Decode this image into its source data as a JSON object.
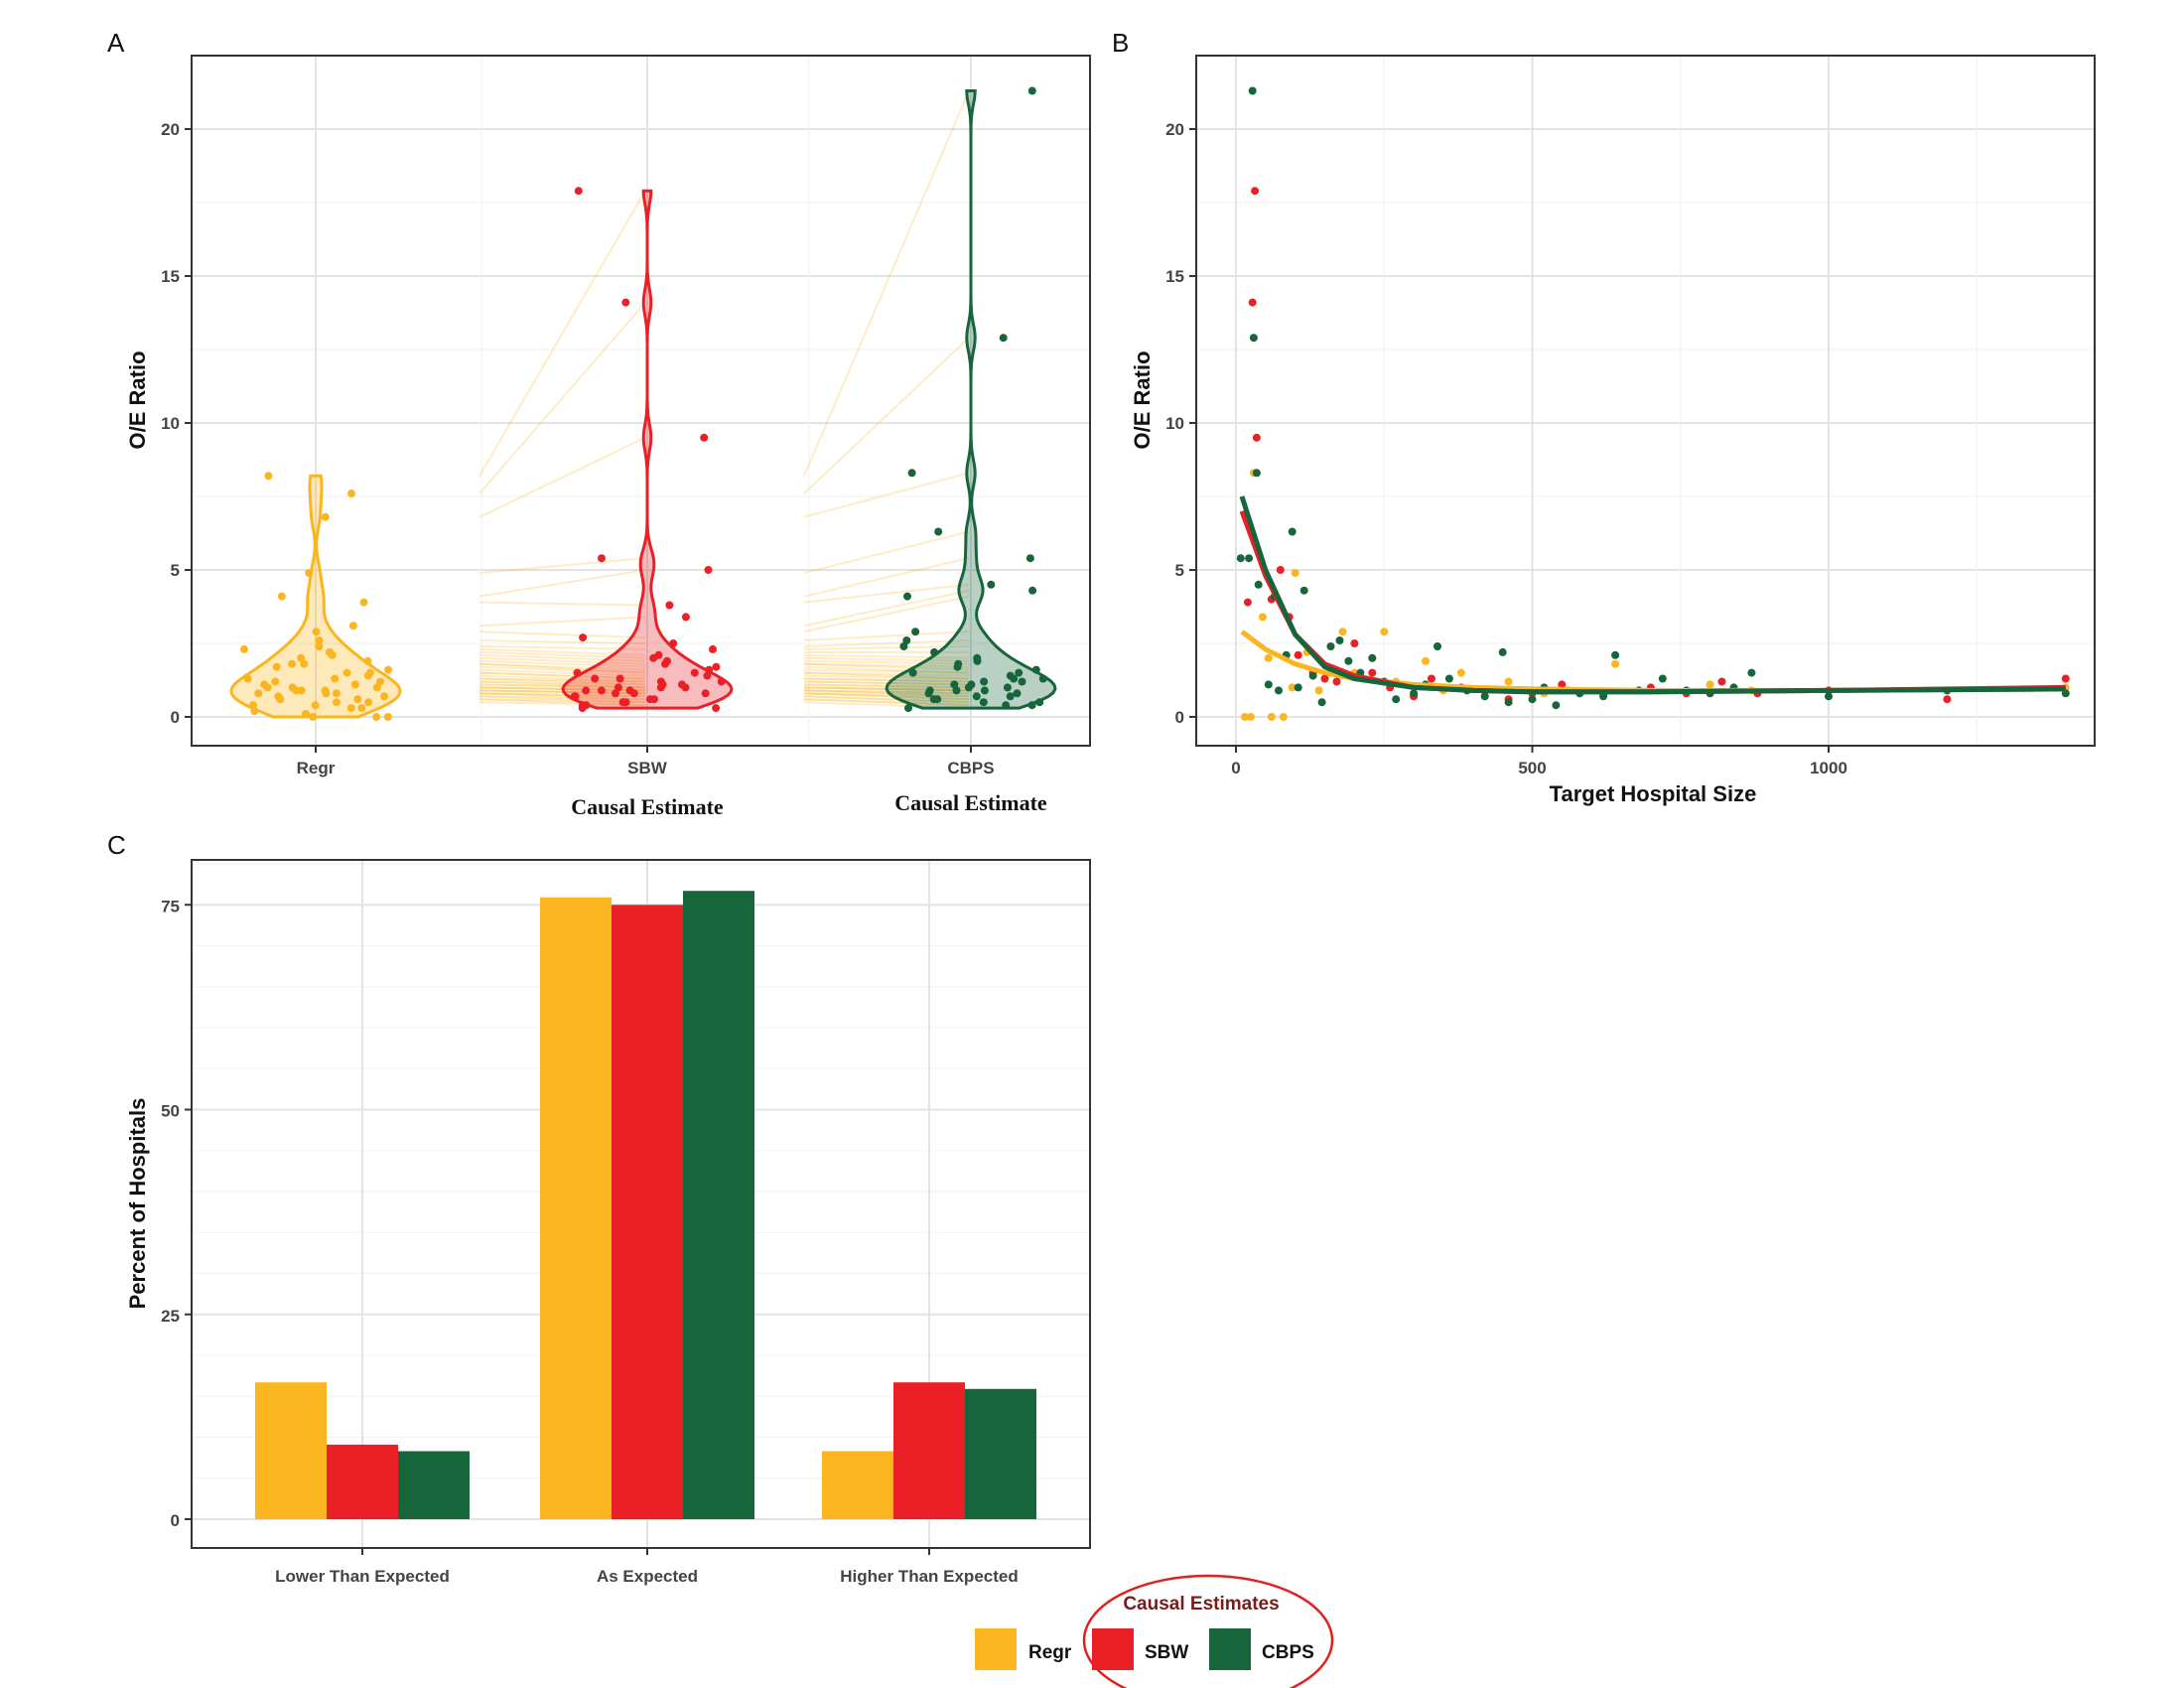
{
  "colors": {
    "Regr": "#FBB51E",
    "SBW": "#EB2027",
    "CBPS": "#17653A"
  },
  "chart_data": [
    {
      "panel": "A",
      "type": "violin",
      "categories": [
        "Regr",
        "SBW",
        "CBPS"
      ],
      "ylabel": "O/E Ratio",
      "xlabels": [
        "Causal Estimate",
        "Causal Estimate"
      ],
      "ylim": [
        0,
        21.5
      ],
      "yticks": [
        0,
        5,
        10,
        15,
        20
      ],
      "grid": true,
      "series": [
        {
          "name": "Regr",
          "values": [
            8.2,
            7.6,
            6.8,
            4.9,
            4.1,
            3.9,
            3.1,
            2.9,
            2.6,
            2.4,
            2.3,
            2.2,
            2.1,
            2.0,
            1.9,
            1.8,
            1.8,
            1.7,
            1.6,
            1.5,
            1.5,
            1.4,
            1.3,
            1.3,
            1.2,
            1.2,
            1.1,
            1.1,
            1.0,
            1.0,
            1.0,
            0.9,
            0.9,
            0.9,
            0.8,
            0.8,
            0.8,
            0.7,
            0.7,
            0.6,
            0.6,
            0.5,
            0.5,
            0.4,
            0.4,
            0.3,
            0.3,
            0.2,
            0.1,
            0.0,
            0.0,
            0.0
          ]
        },
        {
          "name": "SBW",
          "values": [
            17.9,
            14.1,
            9.5,
            5.4,
            5.0,
            3.8,
            3.4,
            2.7,
            2.5,
            2.3,
            2.1,
            2.0,
            1.9,
            1.8,
            1.7,
            1.6,
            1.5,
            1.5,
            1.4,
            1.3,
            1.3,
            1.2,
            1.2,
            1.1,
            1.1,
            1.0,
            1.0,
            1.0,
            0.9,
            0.9,
            0.9,
            0.8,
            0.8,
            0.8,
            0.7,
            0.7,
            0.6,
            0.6,
            0.5,
            0.5,
            0.4,
            0.4,
            0.3,
            0.3
          ]
        },
        {
          "name": "CBPS",
          "values": [
            21.3,
            12.9,
            8.3,
            6.3,
            5.4,
            4.5,
            4.3,
            4.1,
            2.9,
            2.6,
            2.4,
            2.2,
            2.0,
            1.9,
            1.8,
            1.7,
            1.6,
            1.5,
            1.5,
            1.4,
            1.3,
            1.3,
            1.2,
            1.2,
            1.1,
            1.1,
            1.0,
            1.0,
            0.9,
            0.9,
            0.9,
            0.8,
            0.8,
            0.7,
            0.7,
            0.6,
            0.6,
            0.5,
            0.5,
            0.4,
            0.4,
            0.3
          ]
        }
      ]
    },
    {
      "panel": "B",
      "type": "scatter",
      "xlabel": "Target Hospital Size",
      "ylabel": "O/E Ratio",
      "xlim": [
        -50,
        1460
      ],
      "ylim": [
        0,
        21.5
      ],
      "xticks": [
        0,
        500,
        1000
      ],
      "yticks": [
        0,
        5,
        10,
        15,
        20
      ],
      "grid": true,
      "series": [
        {
          "name": "Regr",
          "x": [
            15,
            25,
            30,
            45,
            55,
            60,
            80,
            95,
            100,
            120,
            140,
            160,
            180,
            200,
            230,
            250,
            270,
            300,
            320,
            350,
            380,
            420,
            460,
            520,
            560,
            640,
            700,
            800,
            870,
            1400
          ],
          "y": [
            0.0,
            0.0,
            8.3,
            3.4,
            2.0,
            0.0,
            0.0,
            1.0,
            4.9,
            2.2,
            0.9,
            1.5,
            2.9,
            1.5,
            2.0,
            2.9,
            1.2,
            0.7,
            1.9,
            0.9,
            1.5,
            0.7,
            1.2,
            0.8,
            0.9,
            1.8,
            0.9,
            1.1,
            0.9,
            1.0
          ]
        },
        {
          "name": "SBW",
          "x": [
            20,
            28,
            32,
            35,
            60,
            75,
            90,
            105,
            130,
            150,
            170,
            200,
            230,
            260,
            300,
            330,
            380,
            420,
            460,
            500,
            550,
            620,
            700,
            760,
            820,
            880,
            1000,
            1200,
            1400
          ],
          "y": [
            3.9,
            14.1,
            17.9,
            9.5,
            4.0,
            5.0,
            3.4,
            2.1,
            1.5,
            1.3,
            1.2,
            2.5,
            1.5,
            1.0,
            0.7,
            1.3,
            1.0,
            0.9,
            0.6,
            0.8,
            1.1,
            0.8,
            1.0,
            0.8,
            1.2,
            0.8,
            0.9,
            0.6,
            1.3
          ]
        },
        {
          "name": "CBPS",
          "x": [
            8,
            22,
            28,
            30,
            35,
            38,
            55,
            65,
            72,
            85,
            95,
            105,
            115,
            130,
            145,
            160,
            175,
            190,
            210,
            230,
            250,
            270,
            300,
            320,
            340,
            360,
            390,
            420,
            450,
            460,
            500,
            520,
            540,
            580,
            620,
            640,
            680,
            720,
            760,
            800,
            840,
            870,
            1000,
            1200,
            1400
          ],
          "y": [
            5.4,
            5.4,
            21.3,
            12.9,
            8.3,
            4.5,
            1.1,
            4.1,
            0.9,
            2.1,
            6.3,
            1.0,
            4.3,
            1.4,
            0.5,
            2.4,
            2.6,
            1.9,
            1.5,
            2.0,
            1.2,
            0.6,
            0.8,
            1.1,
            2.4,
            1.3,
            0.9,
            0.7,
            2.2,
            0.5,
            0.6,
            1.0,
            0.4,
            0.8,
            0.7,
            2.1,
            0.9,
            1.3,
            0.9,
            0.8,
            1.0,
            1.5,
            0.7,
            0.9,
            0.8
          ]
        }
      ],
      "trend_lines": [
        {
          "name": "Regr",
          "x": [
            10,
            50,
            100,
            150,
            200,
            300,
            400,
            500,
            700,
            1000,
            1400
          ],
          "y": [
            2.9,
            2.3,
            1.8,
            1.5,
            1.3,
            1.1,
            1.0,
            0.95,
            0.9,
            0.9,
            0.95
          ]
        },
        {
          "name": "SBW",
          "x": [
            10,
            50,
            100,
            150,
            200,
            300,
            400,
            500,
            700,
            1000,
            1400
          ],
          "y": [
            7.0,
            4.8,
            2.8,
            1.8,
            1.4,
            1.0,
            0.9,
            0.85,
            0.85,
            0.9,
            1.0
          ]
        },
        {
          "name": "CBPS",
          "x": [
            10,
            50,
            100,
            150,
            200,
            300,
            400,
            500,
            700,
            1000,
            1400
          ],
          "y": [
            7.5,
            5.0,
            2.8,
            1.7,
            1.3,
            1.0,
            0.9,
            0.85,
            0.85,
            0.9,
            0.95
          ]
        }
      ]
    },
    {
      "panel": "C",
      "type": "bar",
      "categories": [
        "Lower Than Expected",
        "As Expected",
        "Higher Than Expected"
      ],
      "ylabel": "Percent of Hospitals",
      "ylim": [
        0,
        80.5
      ],
      "yticks": [
        0,
        25,
        50,
        75
      ],
      "grid": true,
      "series": [
        {
          "name": "Regr",
          "values": [
            16.7,
            75.9,
            8.3
          ]
        },
        {
          "name": "SBW",
          "values": [
            9.1,
            75.0,
            16.7
          ]
        },
        {
          "name": "CBPS",
          "values": [
            8.3,
            76.7,
            15.9
          ]
        }
      ]
    }
  ],
  "legend": {
    "title": "Causal Estimates",
    "items": [
      "Regr",
      "SBW",
      "CBPS"
    ],
    "placement": "bottom"
  }
}
